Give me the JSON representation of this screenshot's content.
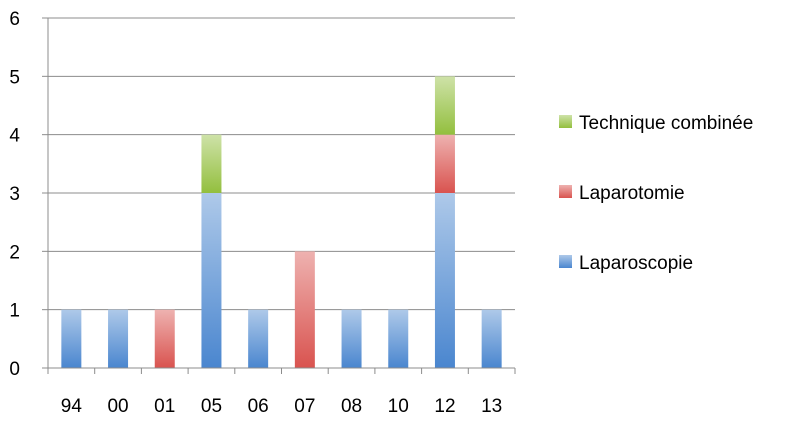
{
  "chart_data": {
    "type": "bar",
    "stacked": true,
    "categories": [
      "94",
      "00",
      "01",
      "05",
      "06",
      "07",
      "08",
      "10",
      "12",
      "13"
    ],
    "series": [
      {
        "name": "Laparoscopie",
        "values": [
          1,
          1,
          0,
          3,
          1,
          0,
          1,
          1,
          3,
          1
        ],
        "color": "#4a86cf"
      },
      {
        "name": "Laparotomie",
        "values": [
          0,
          0,
          1,
          0,
          0,
          2,
          0,
          0,
          1,
          0
        ],
        "color": "#d9534f"
      },
      {
        "name": "Technique combinée",
        "values": [
          0,
          0,
          0,
          1,
          0,
          0,
          0,
          0,
          1,
          0
        ],
        "color": "#93bf3e"
      }
    ],
    "ylim": [
      0,
      6
    ],
    "yticks": [
      0,
      1,
      2,
      3,
      4,
      5,
      6
    ],
    "grid": true,
    "legend_position": "right",
    "legend_order": [
      "Technique combinée",
      "Laparotomie",
      "Laparoscopie"
    ],
    "title": "",
    "xlabel": "",
    "ylabel": ""
  }
}
